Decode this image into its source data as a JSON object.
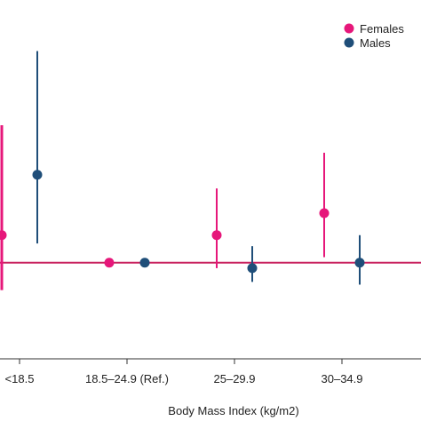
{
  "chart_data": {
    "type": "scatter",
    "subtype": "point-with-error-bars",
    "xlabel": "Body Mass Index (kg/m2)",
    "ylabel": "",
    "categories": [
      "<18.5",
      "18.5–24.9 (Ref.)",
      "25–29.9",
      "30–34.9"
    ],
    "reference_value": 1.0,
    "ylim": [
      0.65,
      1.93
    ],
    "grid": false,
    "legend_position": "top-right",
    "series": [
      {
        "name": "Females",
        "color": "#e6177a",
        "points": [
          {
            "category": "<18.5",
            "value": 1.1,
            "lower": 0.9,
            "upper": 1.5
          },
          {
            "category": "18.5–24.9 (Ref.)",
            "value": 1.0,
            "lower": 1.0,
            "upper": 1.0
          },
          {
            "category": "25–29.9",
            "value": 1.1,
            "lower": 0.98,
            "upper": 1.27
          },
          {
            "category": "30–34.9",
            "value": 1.18,
            "lower": 1.02,
            "upper": 1.4
          }
        ]
      },
      {
        "name": "Males",
        "color": "#1f4e79",
        "points": [
          {
            "category": "<18.5",
            "value": 1.32,
            "lower": 1.07,
            "upper": 1.77
          },
          {
            "category": "18.5–24.9 (Ref.)",
            "value": 1.0,
            "lower": 1.0,
            "upper": 1.0
          },
          {
            "category": "25–29.9",
            "value": 0.98,
            "lower": 0.93,
            "upper": 1.06
          },
          {
            "category": "30–34.9",
            "value": 1.0,
            "lower": 0.92,
            "upper": 1.1
          }
        ]
      }
    ],
    "reference_line_color": "#c8215e"
  }
}
